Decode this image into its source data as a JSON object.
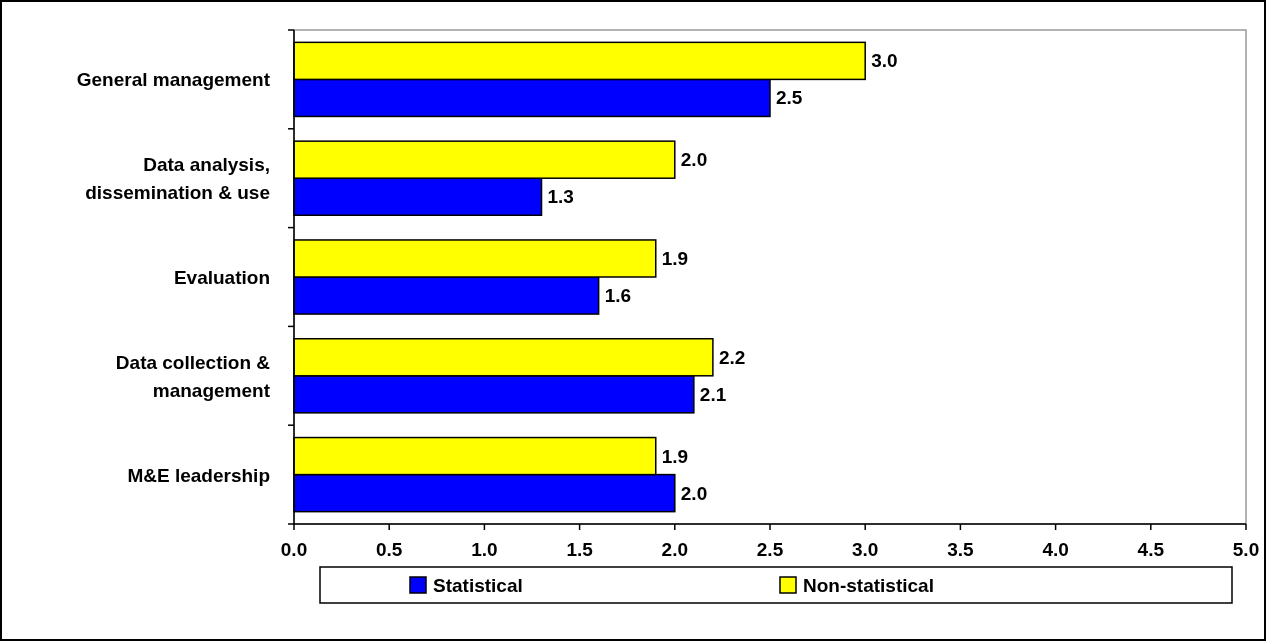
{
  "chart_data": {
    "type": "bar",
    "orientation": "horizontal",
    "categories": [
      "General management",
      "Data analysis,\ndissemination & use",
      "Evaluation",
      "Data collection &\nmanagement",
      "M&E leadership"
    ],
    "series": [
      {
        "name": "Statistical",
        "color": "#0000ff",
        "values": [
          2.5,
          1.3,
          1.6,
          2.1,
          2.0
        ],
        "value_labels": [
          "2.5",
          "1.3",
          "1.6",
          "2.1",
          "2.0"
        ]
      },
      {
        "name": "Non-statistical",
        "color": "#ffff00",
        "values": [
          3.0,
          2.0,
          1.9,
          2.2,
          1.9
        ],
        "value_labels": [
          "3.0",
          "2.0",
          "1.9",
          "2.2",
          "1.9"
        ]
      }
    ],
    "xlim": [
      0,
      5
    ],
    "xticks": [
      {
        "value": 0,
        "label": "0.0"
      },
      {
        "value": 0.5,
        "label": "0.5"
      },
      {
        "value": 1,
        "label": "1.0"
      },
      {
        "value": 1.5,
        "label": "1.5"
      },
      {
        "value": 2,
        "label": "2.0"
      },
      {
        "value": 2.5,
        "label": "2.5"
      },
      {
        "value": 3,
        "label": "3.0"
      },
      {
        "value": 3.5,
        "label": "3.5"
      },
      {
        "value": 4,
        "label": "4.0"
      },
      {
        "value": 4.5,
        "label": "4.5"
      },
      {
        "value": 5,
        "label": "5.0"
      }
    ],
    "grid": false,
    "legend": "bottom"
  }
}
